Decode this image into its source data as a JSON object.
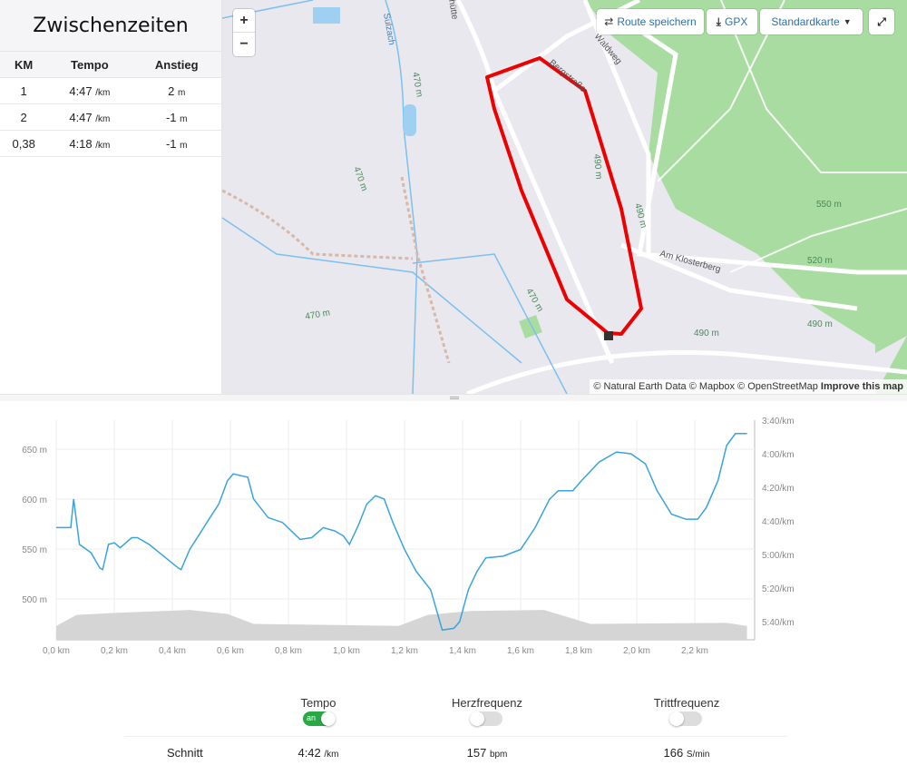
{
  "splits": {
    "title": "Zwischenzeiten",
    "headers": [
      "KM",
      "Tempo",
      "Anstieg"
    ],
    "rows": [
      {
        "km": "1",
        "pace": "4:47",
        "pace_unit": "/km",
        "climb": "2",
        "climb_unit": "m"
      },
      {
        "km": "2",
        "pace": "4:47",
        "pace_unit": "/km",
        "climb": "-1",
        "climb_unit": "m"
      },
      {
        "km": "0,38",
        "pace": "4:18",
        "pace_unit": "/km",
        "climb": "-1",
        "climb_unit": "m"
      }
    ]
  },
  "map": {
    "zoom_in": "+",
    "zoom_out": "−",
    "save_route": "Route speichern",
    "gpx": "GPX",
    "map_style": "Standardkarte",
    "attribution": "© Natural Earth Data © Mapbox © OpenStreetMap",
    "improve": "Improve this map",
    "labels": [
      "Sulzach",
      "470 m",
      "470 m",
      "470 m",
      "470 m",
      "490 m",
      "490 m",
      "490 m",
      "Am Klosterberg",
      "Waldweg",
      "Bergstraße",
      "550 m",
      "520 m",
      "490 m",
      "hütte"
    ],
    "colors": {
      "route": "#ee0000",
      "forest": "#a8dca0",
      "water": "#7cc0ee",
      "bg": "#e9e8ef"
    }
  },
  "chart_data": {
    "type": "line",
    "x_ticks": [
      "0,0 km",
      "0,2 km",
      "0,4 km",
      "0,6 km",
      "0,8 km",
      "1,0 km",
      "1,2 km",
      "1,4 km",
      "1,6 km",
      "1,8 km",
      "2,0 km",
      "2,2 km"
    ],
    "left_ticks": [
      "650 m",
      "600 m",
      "550 m",
      "500 m"
    ],
    "right_ticks": [
      "3:40/km",
      "4:00/km",
      "4:20/km",
      "4:40/km",
      "5:00/km",
      "5:20/km",
      "5:40/km"
    ],
    "xlim": [
      0,
      2.38
    ],
    "elevation_ylim": [
      450,
      680
    ],
    "pace_ylim_sec": [
      220,
      350
    ],
    "pace_series": {
      "name": "Tempo",
      "color": "#3aa3dd",
      "x": [
        0,
        0.05,
        0.06,
        0.08,
        0.12,
        0.15,
        0.16,
        0.18,
        0.2,
        0.22,
        0.26,
        0.28,
        0.32,
        0.37,
        0.42,
        0.43,
        0.46,
        0.53,
        0.56,
        0.59,
        0.61,
        0.66,
        0.68,
        0.73,
        0.78,
        0.84,
        0.88,
        0.92,
        0.96,
        0.99,
        1.01,
        1.04,
        1.07,
        1.1,
        1.13,
        1.16,
        1.2,
        1.24,
        1.29,
        1.33,
        1.37,
        1.39,
        1.42,
        1.45,
        1.48,
        1.54,
        1.6,
        1.65,
        1.7,
        1.73,
        1.78,
        1.81,
        1.87,
        1.93,
        1.98,
        2.03,
        2.07,
        2.12,
        2.17,
        2.21,
        2.24,
        2.28,
        2.31,
        2.34,
        2.38
      ],
      "y": [
        284,
        284,
        267,
        294,
        299,
        308,
        309,
        294,
        293,
        296,
        290,
        290,
        294,
        301,
        308,
        309,
        297,
        278,
        270,
        256,
        252,
        254,
        267,
        278,
        281,
        291,
        290,
        284,
        286,
        289,
        294,
        283,
        270,
        265,
        267,
        281,
        297,
        310,
        321,
        345,
        344,
        340,
        321,
        310,
        302,
        301,
        297,
        284,
        267,
        262,
        262,
        256,
        245,
        239,
        240,
        246,
        262,
        276,
        279,
        279,
        272,
        256,
        235,
        228,
        228
      ]
    },
    "elevation_series": {
      "name": "Höhe",
      "color": "#d5d5d5",
      "x": [
        0,
        0.07,
        0.2,
        0.46,
        0.59,
        0.68,
        1.18,
        1.28,
        1.43,
        1.68,
        1.84,
        2.31,
        2.38
      ],
      "y": [
        473,
        484,
        486,
        489,
        485,
        475,
        473,
        484,
        488,
        489,
        475,
        476,
        473
      ]
    }
  },
  "metrics": {
    "items": [
      {
        "label": "Tempo",
        "toggle_on": true,
        "toggle_text": "an",
        "value": "4:42",
        "unit": "/km"
      },
      {
        "label": "Herzfrequenz",
        "toggle_on": false,
        "value": "157",
        "unit": "bpm"
      },
      {
        "label": "Trittfrequenz",
        "toggle_on": false,
        "value": "166",
        "unit": "S/min"
      }
    ],
    "avg_label": "Schnitt"
  }
}
